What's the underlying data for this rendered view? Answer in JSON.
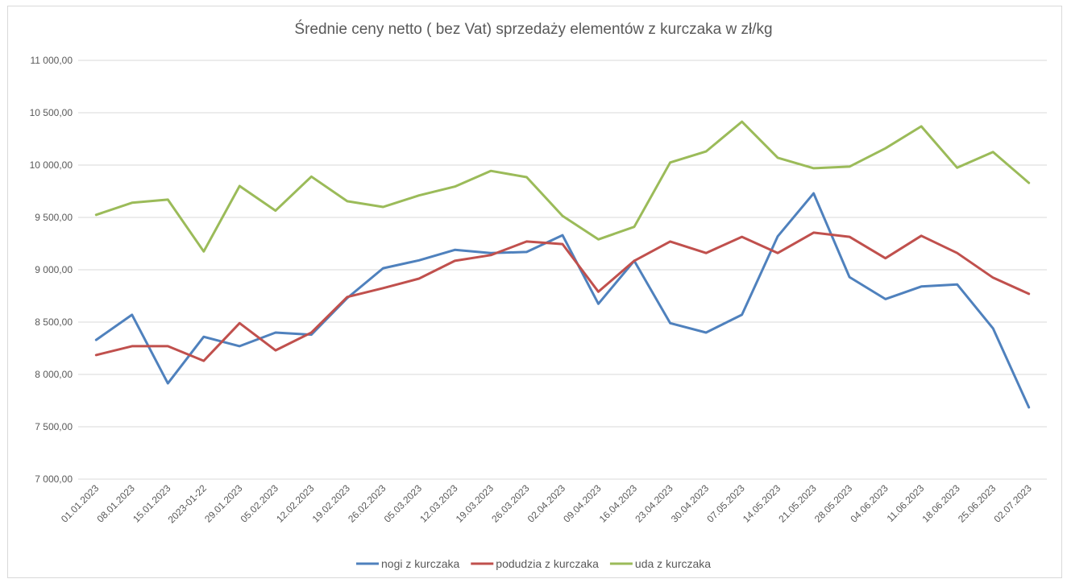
{
  "chart_data": {
    "type": "line",
    "title": "Średnie ceny netto ( bez Vat) sprzedaży elementów z kurczaka w zł/kg",
    "categories": [
      "01.01.2023",
      "08.01.2023",
      "15.01.2023",
      "2023-01-22",
      "29.01.2023",
      "05.02.2023",
      "12.02.2023",
      "19.02.2023",
      "26.02.2023",
      "05.03.2023",
      "12.03.2023",
      "19.03.2023",
      "26.03.2023",
      "02.04.2023",
      "09.04.2023",
      "16.04.2023",
      "23.04.2023",
      "30.04.2023",
      "07.05.2023",
      "14.05.2023",
      "21.05.2023",
      "28.05.2023",
      "04.06.2023",
      "11.06.2023",
      "18.06.2023",
      "25.06.2023",
      "02.07.2023"
    ],
    "series": [
      {
        "name": "nogi z kurczaka",
        "color": "#4f81bd",
        "values": [
          8330,
          8570,
          7915,
          8360,
          8270,
          8400,
          8380,
          8730,
          9015,
          9090,
          9190,
          9160,
          9170,
          9330,
          8675,
          9085,
          8490,
          8400,
          8570,
          9320,
          9730,
          8930,
          8720,
          8840,
          8860,
          8440,
          7685
        ]
      },
      {
        "name": "podudzia z kurczaka",
        "color": "#c0504d",
        "values": [
          8185,
          8270,
          8270,
          8130,
          8490,
          8230,
          8400,
          8740,
          8825,
          8915,
          9085,
          9140,
          9270,
          9245,
          8790,
          9085,
          9270,
          9160,
          9315,
          9160,
          9355,
          9315,
          9110,
          9325,
          9160,
          8925,
          8770
        ]
      },
      {
        "name": "uda z kurczaka",
        "color": "#9bbb59",
        "values": [
          9525,
          9640,
          9670,
          9175,
          9800,
          9565,
          9890,
          9655,
          9600,
          9710,
          9795,
          9945,
          9885,
          9515,
          9290,
          9410,
          10025,
          10130,
          10415,
          10070,
          9970,
          9985,
          10160,
          10370,
          9975,
          10125,
          9830
        ]
      }
    ],
    "ylim": [
      7000,
      11000
    ],
    "yticks": [
      {
        "value": 7000,
        "label": "7 000,00"
      },
      {
        "value": 7500,
        "label": "7 500,00"
      },
      {
        "value": 8000,
        "label": "8 000,00"
      },
      {
        "value": 8500,
        "label": "8 500,00"
      },
      {
        "value": 9000,
        "label": "9 000,00"
      },
      {
        "value": 9500,
        "label": "9 500,00"
      },
      {
        "value": 10000,
        "label": "10 000,00"
      },
      {
        "value": 10500,
        "label": "10 500,00"
      },
      {
        "value": 11000,
        "label": "11 000,00"
      }
    ],
    "grid": true,
    "legend": "bottom"
  }
}
